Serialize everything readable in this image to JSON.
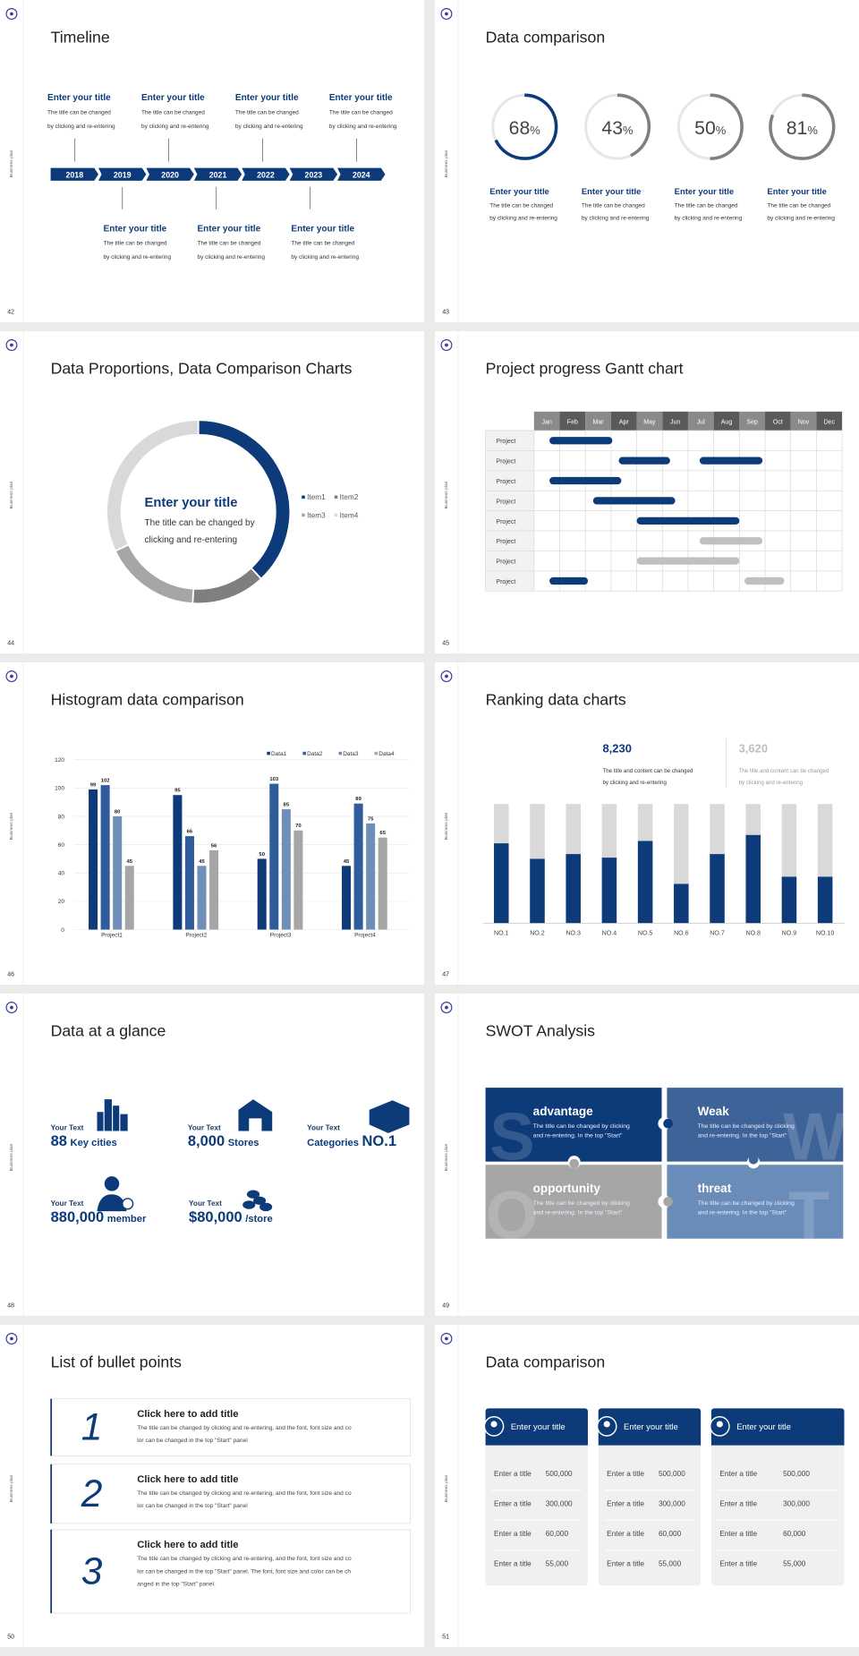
{
  "slides": [
    {
      "number": "42",
      "side_label": "Business plan",
      "title": "Timeline",
      "timeline": {
        "years": [
          "2018",
          "2019",
          "2020",
          "2021",
          "2022",
          "2023",
          "2024"
        ],
        "top": [
          {
            "title": "Enter your title",
            "lines": [
              "The title can be changed",
              "by clicking and re-entering"
            ]
          },
          {
            "title": "Enter your title",
            "lines": [
              "The title can be changed",
              "by clicking and re-entering"
            ]
          },
          {
            "title": "Enter your title",
            "lines": [
              "The title can be changed",
              "by clicking and re-entering"
            ]
          },
          {
            "title": "Enter your title",
            "lines": [
              "The title can be changed",
              "by clicking and re-entering"
            ]
          }
        ],
        "bottom": [
          {
            "title": "Enter your title",
            "lines": [
              "The title can be changed",
              "by clicking and re-entering"
            ]
          },
          {
            "title": "Enter your title",
            "lines": [
              "The title can be changed",
              "by clicking and re-entering"
            ]
          },
          {
            "title": "Enter your title",
            "lines": [
              "The title can be changed",
              "by clicking and re-entering"
            ]
          }
        ]
      }
    },
    {
      "number": "43",
      "side_label": "Business plan",
      "title": "Data comparison",
      "rings": {
        "values": [
          68,
          43,
          50,
          81
        ],
        "unit": "%",
        "colors": [
          "#0d3b7a",
          "#7f7f7f",
          "#7f7f7f",
          "#7f7f7f"
        ],
        "track_color": "#e6e6e6",
        "items": [
          {
            "title": "Enter your title",
            "lines": [
              "The title can be changed",
              "by clicking and re-entering"
            ]
          },
          {
            "title": "Enter your title",
            "lines": [
              "The title can be changed",
              "by clicking and re-entering"
            ]
          },
          {
            "title": "Enter your title",
            "lines": [
              "The title can be changed",
              "by clicking and re-entering"
            ]
          },
          {
            "title": "Enter your title",
            "lines": [
              "The title can be changed",
              "by clicking and re-entering"
            ]
          }
        ]
      }
    },
    {
      "number": "44",
      "side_label": "Business plan",
      "title": "Data Proportions, Data Comparison Charts",
      "donut": {
        "values": [
          38,
          13,
          17,
          32
        ],
        "labels": [
          "Item1",
          "Item2",
          "Item3",
          "Item4"
        ],
        "colors": [
          "#0d3b7a",
          "#7f7f7f",
          "#a6a6a6",
          "#d9d9d9"
        ],
        "title": "Enter your title",
        "lines": [
          "The title can be changed by",
          "clicking and re-entering"
        ]
      }
    },
    {
      "number": "45",
      "side_label": "Business plan",
      "title": "Project progress Gantt chart",
      "gantt": {
        "months": [
          "Jan",
          "Feb",
          "Mar",
          "Apr",
          "May",
          "Jun",
          "Jul",
          "Aug",
          "Sep",
          "Oct",
          "Nov",
          "Dec"
        ],
        "rows": [
          {
            "label": "Project",
            "bars": [
              {
                "start": 0.6,
                "end": 3.05,
                "color": "#0d3b7a"
              }
            ]
          },
          {
            "label": "Project",
            "bars": [
              {
                "start": 3.3,
                "end": 5.3,
                "color": "#0d3b7a"
              },
              {
                "start": 6.45,
                "end": 8.9,
                "color": "#0d3b7a"
              }
            ]
          },
          {
            "label": "Project",
            "bars": [
              {
                "start": 0.6,
                "end": 3.4,
                "color": "#0d3b7a"
              }
            ]
          },
          {
            "label": "Project",
            "bars": [
              {
                "start": 2.3,
                "end": 5.5,
                "color": "#0d3b7a"
              }
            ]
          },
          {
            "label": "Project",
            "bars": [
              {
                "start": 4.0,
                "end": 8.0,
                "color": "#0d3b7a"
              }
            ]
          },
          {
            "label": "Project",
            "bars": [
              {
                "start": 6.45,
                "end": 8.9,
                "color": "#c0c0c0"
              }
            ]
          },
          {
            "label": "Project",
            "bars": [
              {
                "start": 4.0,
                "end": 8.0,
                "color": "#c0c0c0"
              }
            ]
          },
          {
            "label": "Project",
            "bars": [
              {
                "start": 0.6,
                "end": 2.1,
                "color": "#0d3b7a"
              },
              {
                "start": 8.2,
                "end": 9.75,
                "color": "#c0c0c0"
              }
            ]
          }
        ]
      }
    },
    {
      "number": "46",
      "side_label": "Business plan",
      "title": "Histogram data comparison",
      "histogram": {
        "type": "bar",
        "categories": [
          "Project1",
          "Project2",
          "Project3",
          "Project4"
        ],
        "series": [
          {
            "name": "Data1",
            "color": "#0d3b7a",
            "values": [
              99,
              95,
              50,
              45
            ]
          },
          {
            "name": "Data2",
            "color": "#2f5c9a",
            "values": [
              102,
              66,
              103,
              89
            ]
          },
          {
            "name": "Data3",
            "color": "#6f8fb8",
            "values": [
              80,
              45,
              85,
              75
            ]
          },
          {
            "name": "Data4",
            "color": "#a6a6a6",
            "values": [
              45,
              56,
              70,
              65
            ]
          }
        ],
        "ylim": [
          0,
          120
        ],
        "yticks": [
          0,
          20,
          40,
          60,
          80,
          100,
          120
        ],
        "grid": true
      }
    },
    {
      "number": "47",
      "side_label": "Business plan",
      "title": "Ranking data charts",
      "ranking": {
        "highlights": [
          {
            "value": "8,230",
            "color": "#0d3b7a",
            "lines": [
              "The title and content can be changed",
              "by clicking and re-entering"
            ]
          },
          {
            "value": "3,620",
            "color": "#bfbfbf",
            "lines": [
              "The title and content can be changed",
              "by clicking and re-entering"
            ]
          }
        ],
        "type": "bar",
        "categories": [
          "NO.1",
          "NO.2",
          "NO.3",
          "NO.4",
          "NO.5",
          "NO.6",
          "NO.7",
          "NO.8",
          "NO.9",
          "NO.10"
        ],
        "values": [
          67,
          54,
          58,
          55,
          69,
          33,
          58,
          74,
          39,
          39
        ],
        "ylim": [
          0,
          100
        ],
        "color": "#0d3b7a",
        "background_color": "#d9d9d9"
      }
    },
    {
      "number": "48",
      "side_label": "Business plan",
      "title": "Data at a glance",
      "stats": [
        {
          "label": "Your Text",
          "value": "88",
          "unit": "Key cities"
        },
        {
          "label": "Your Text",
          "value": "8,000",
          "unit": "Stores"
        },
        {
          "label": "Your Text",
          "prefix": "Categories",
          "value": "NO.1"
        },
        {
          "label": "Your Text",
          "value": "880,000",
          "unit": "member"
        },
        {
          "label": "Your Text",
          "value": "$80,000",
          "unit": "/store"
        }
      ]
    },
    {
      "number": "49",
      "side_label": "Business plan",
      "title": "SWOT Analysis",
      "swot": [
        {
          "letter": "S",
          "title": "advantage",
          "color": "#0d3b7a",
          "lines": [
            "The title can be changed by clicking",
            "and re-entering. In the top \"Start\""
          ]
        },
        {
          "letter": "W",
          "title": "Weak",
          "color": "#3e6398",
          "lines": [
            "The title can be changed by clicking",
            "and re-entering. In the top \"Start\""
          ]
        },
        {
          "letter": "O",
          "title": "opportunity",
          "color": "#a6a6a6",
          "lines": [
            "The title can be changed by clicking",
            "and re-entering. In the top \"Start\""
          ]
        },
        {
          "letter": "T",
          "title": "threat",
          "color": "#6a8cb8",
          "lines": [
            "The title can be changed by clicking",
            "and re-entering. In the top \"Start\""
          ]
        }
      ]
    },
    {
      "number": "50",
      "side_label": "Business plan",
      "title": "List of bullet points",
      "bullets": [
        {
          "number": "1",
          "title": "Click here to add title",
          "lines": [
            "The title can be changed by clicking and re-entering, and the font, font size and co",
            "lor can be changed in the top \"Start\" panel"
          ]
        },
        {
          "number": "2",
          "title": "Click here to add title",
          "lines": [
            "The title can be changed by clicking and re-entering, and the font, font size and co",
            "lor can be changed in the top \"Start\" panel"
          ]
        },
        {
          "number": "3",
          "title": "Click here to add title",
          "lines": [
            "The title can be changed by clicking and re-entering, and the font, font size and co",
            "lor can be changed in the top \"Start\" panel. The font, font size and color can be ch",
            "anged in the top \"Start\" panel."
          ]
        }
      ]
    },
    {
      "number": "51",
      "side_label": "Business plan",
      "title": "Data comparison",
      "cards": [
        {
          "title": "Enter your title",
          "rows": [
            {
              "label": "Enter a title",
              "value": "500,000"
            },
            {
              "label": "Enter a title",
              "value": "300,000"
            },
            {
              "label": "Enter a title",
              "value": "60,000"
            },
            {
              "label": "Enter a title",
              "value": "55,000"
            }
          ]
        },
        {
          "title": "Enter your title",
          "rows": [
            {
              "label": "Enter a title",
              "value": "500,000"
            },
            {
              "label": "Enter a title",
              "value": "300,000"
            },
            {
              "label": "Enter a title",
              "value": "60,000"
            },
            {
              "label": "Enter a title",
              "value": "55,000"
            }
          ]
        },
        {
          "title": "Enter your title",
          "rows": [
            {
              "label": "Enter a title",
              "value": "500,000"
            },
            {
              "label": "Enter a title",
              "value": "300,000"
            },
            {
              "label": "Enter a title",
              "value": "60,000"
            },
            {
              "label": "Enter a title",
              "value": "55,000"
            }
          ]
        }
      ]
    }
  ]
}
